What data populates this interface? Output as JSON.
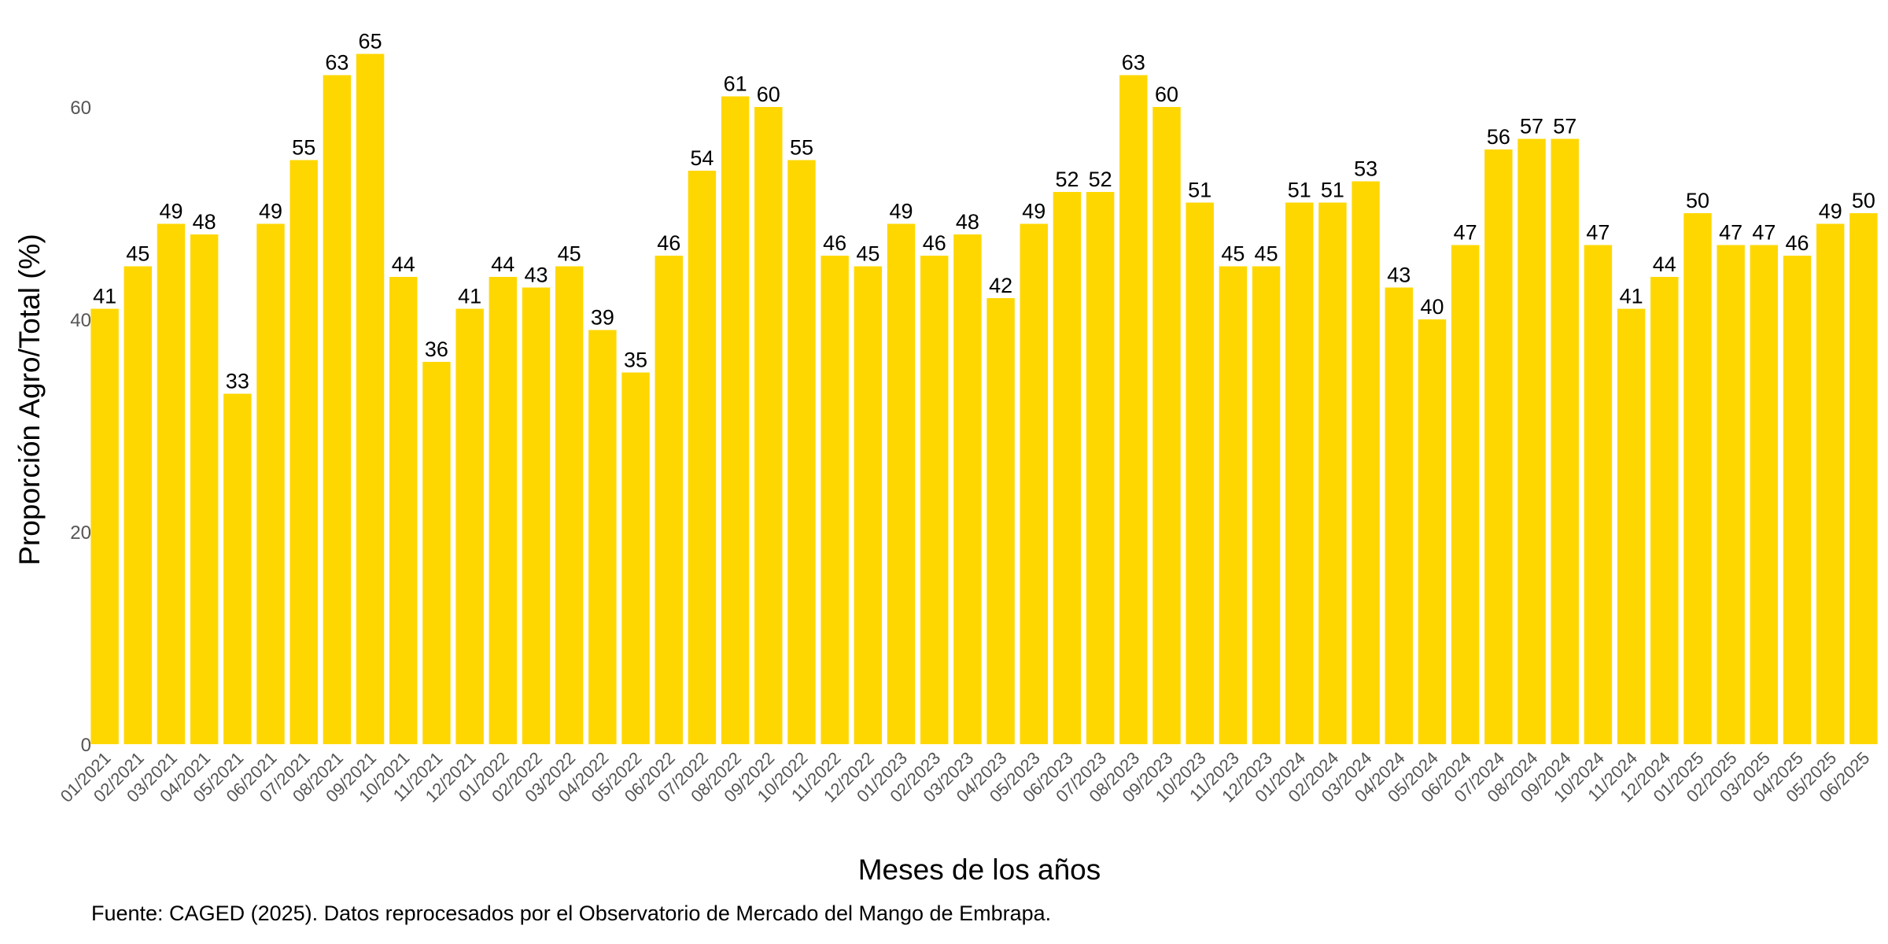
{
  "chart_data": {
    "type": "bar",
    "title": "",
    "xlabel": "Meses de los años",
    "ylabel": "Proporción Agro/Total (%)",
    "caption": "Fuente: CAGED (2025). Datos reprocesados por el Observatorio de Mercado del Mango de Embrapa.",
    "ylim": [
      0,
      65
    ],
    "yticks": [
      0,
      20,
      40,
      60
    ],
    "grid": false,
    "bar_color": "#FFD700",
    "categories": [
      "01/2021",
      "02/2021",
      "03/2021",
      "04/2021",
      "05/2021",
      "06/2021",
      "07/2021",
      "08/2021",
      "09/2021",
      "10/2021",
      "11/2021",
      "12/2021",
      "01/2022",
      "02/2022",
      "03/2022",
      "04/2022",
      "05/2022",
      "06/2022",
      "07/2022",
      "08/2022",
      "09/2022",
      "10/2022",
      "11/2022",
      "12/2022",
      "01/2023",
      "02/2023",
      "03/2023",
      "04/2023",
      "05/2023",
      "06/2023",
      "07/2023",
      "08/2023",
      "09/2023",
      "10/2023",
      "11/2023",
      "12/2023",
      "01/2024",
      "02/2024",
      "03/2024",
      "04/2024",
      "05/2024",
      "06/2024",
      "07/2024",
      "08/2024",
      "09/2024",
      "10/2024",
      "11/2024",
      "12/2024",
      "01/2025",
      "02/2025",
      "03/2025",
      "04/2025",
      "05/2025",
      "06/2025"
    ],
    "values": [
      41,
      45,
      49,
      48,
      33,
      49,
      55,
      63,
      65,
      44,
      36,
      41,
      44,
      43,
      45,
      39,
      35,
      46,
      54,
      61,
      60,
      55,
      46,
      45,
      49,
      46,
      48,
      42,
      49,
      52,
      52,
      63,
      60,
      51,
      45,
      45,
      51,
      51,
      53,
      43,
      40,
      47,
      56,
      57,
      57,
      47,
      41,
      44,
      50,
      47,
      47,
      46,
      49,
      50
    ]
  }
}
